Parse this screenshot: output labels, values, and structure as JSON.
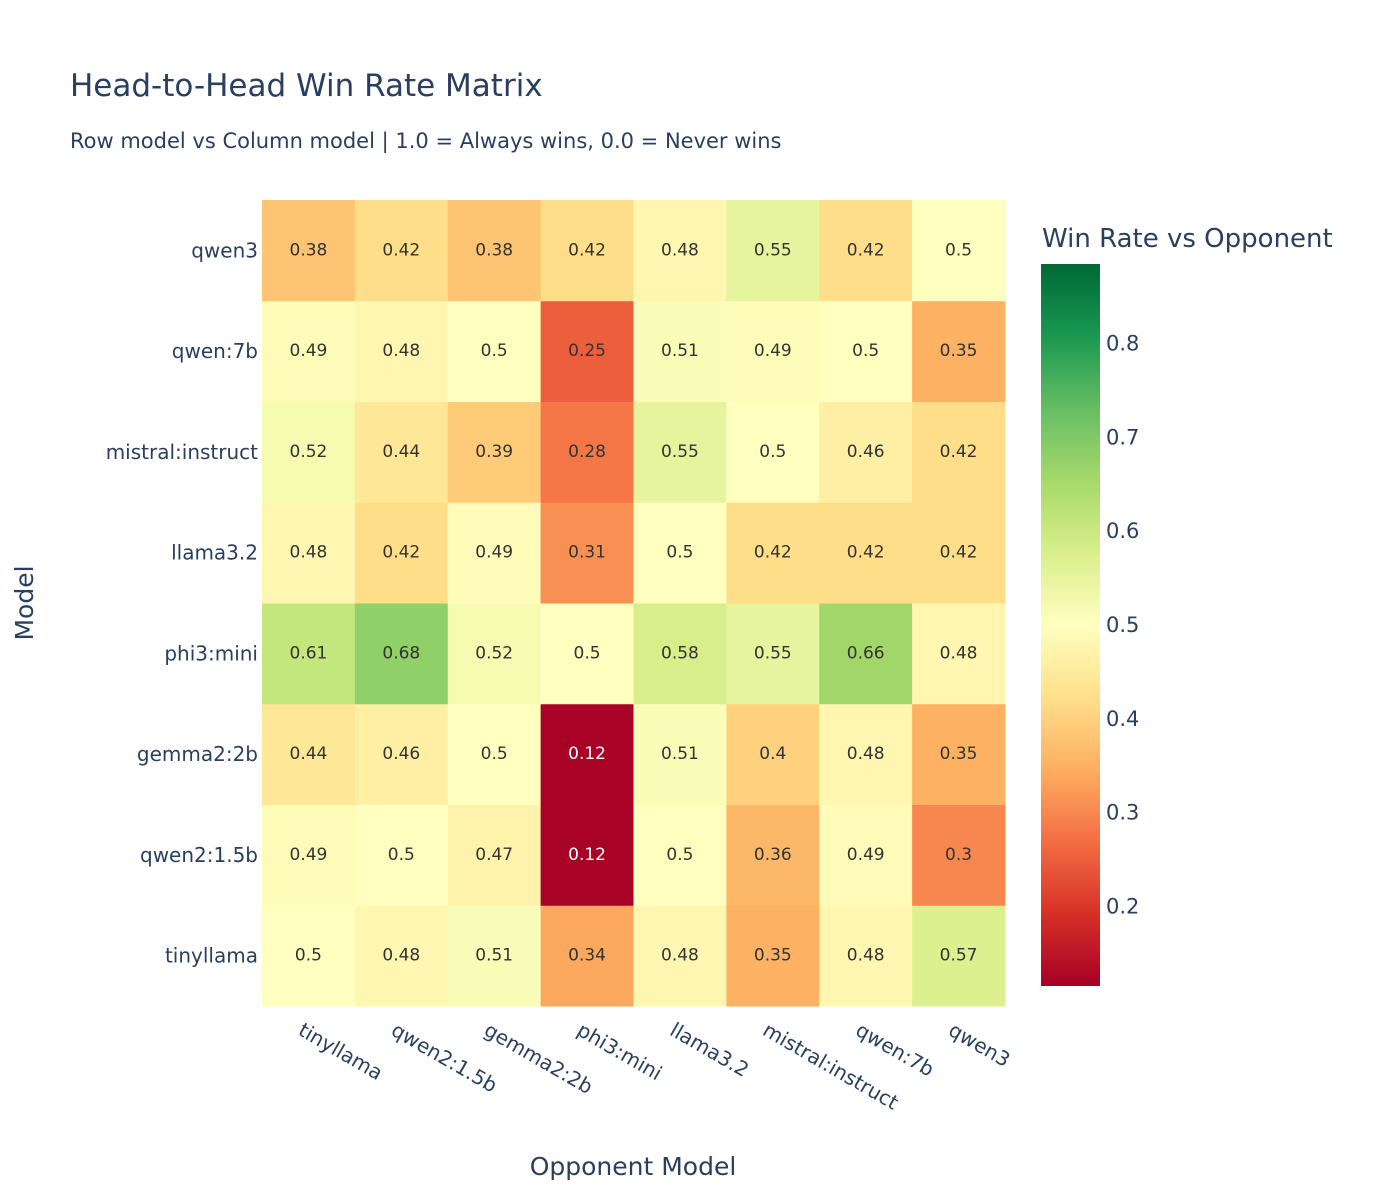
{
  "chart_data": {
    "type": "heatmap",
    "title": "Head-to-Head Win Rate Matrix",
    "subtitle": "Row model vs Column model | 1.0 = Always wins, 0.0 = Never wins",
    "xlabel": "Opponent Model",
    "ylabel": "Model",
    "x_categories": [
      "tinyllama",
      "qwen2:1.5b",
      "gemma2:2b",
      "phi3:mini",
      "llama3.2",
      "mistral:instruct",
      "qwen:7b",
      "qwen3"
    ],
    "y_categories": [
      "tinyllama",
      "qwen2:1.5b",
      "gemma2:2b",
      "phi3:mini",
      "llama3.2",
      "mistral:instruct",
      "qwen:7b",
      "qwen3"
    ],
    "z": [
      [
        0.5,
        0.48,
        0.51,
        0.34,
        0.48,
        0.35,
        0.48,
        0.57
      ],
      [
        0.49,
        0.5,
        0.47,
        0.12,
        0.5,
        0.36,
        0.49,
        0.3
      ],
      [
        0.44,
        0.46,
        0.5,
        0.12,
        0.51,
        0.4,
        0.48,
        0.35
      ],
      [
        0.61,
        0.68,
        0.52,
        0.5,
        0.58,
        0.55,
        0.66,
        0.48
      ],
      [
        0.48,
        0.42,
        0.49,
        0.31,
        0.5,
        0.42,
        0.42,
        0.42
      ],
      [
        0.52,
        0.44,
        0.39,
        0.28,
        0.55,
        0.5,
        0.46,
        0.42
      ],
      [
        0.49,
        0.48,
        0.5,
        0.25,
        0.51,
        0.49,
        0.5,
        0.35
      ],
      [
        0.38,
        0.42,
        0.38,
        0.42,
        0.48,
        0.55,
        0.42,
        0.5
      ]
    ],
    "colorscale": "RdYlGn",
    "colorbar": {
      "title": "Win Rate vs Opponent",
      "range": [
        0.115,
        0.885
      ],
      "ticks": [
        0.2,
        0.3,
        0.4,
        0.5,
        0.6,
        0.7,
        0.8
      ]
    }
  }
}
